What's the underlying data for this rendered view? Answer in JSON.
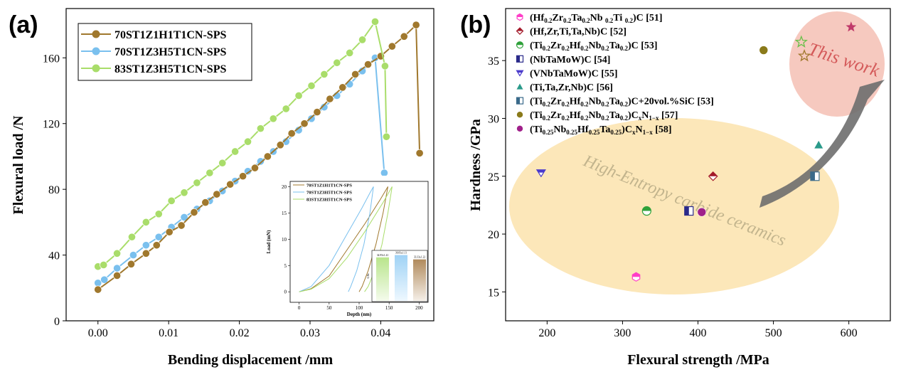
{
  "chart_data": [
    {
      "type": "line",
      "panel_label": "(a)",
      "xlabel": "Bending displacement /mm",
      "ylabel": "Flexural load /N",
      "xlim": [
        -0.0045,
        0.0475
      ],
      "ylim": [
        0,
        190
      ],
      "xticks": [
        0.0,
        0.01,
        0.02,
        0.03,
        0.04
      ],
      "xtick_labels": [
        "0.00",
        "0.01",
        "0.02",
        "0.03",
        "0.04"
      ],
      "yticks": [
        0,
        40,
        80,
        120,
        160
      ],
      "ytick_labels": [
        "0",
        "40",
        "80",
        "120",
        "160"
      ],
      "legend_position": "top-left",
      "series": [
        {
          "name": "70ST1Z1H1T1CN-SPS",
          "color": "#a0782d",
          "x": [
            0.0,
            0.0027,
            0.0047,
            0.0068,
            0.0083,
            0.0101,
            0.0118,
            0.0136,
            0.0152,
            0.0168,
            0.0187,
            0.0205,
            0.0222,
            0.024,
            0.0258,
            0.0274,
            0.0292,
            0.031,
            0.0328,
            0.0346,
            0.0364,
            0.0382,
            0.04,
            0.0416,
            0.0433,
            0.045,
            0.0455
          ],
          "y": [
            19.0,
            27.5,
            34.5,
            41.0,
            46.0,
            54.0,
            58.0,
            66.0,
            72.0,
            77.0,
            83.0,
            88.0,
            93.0,
            100.0,
            107.0,
            114.0,
            120.0,
            127.0,
            135.0,
            142.0,
            150.0,
            156.0,
            161.0,
            167.0,
            173.0,
            180.0,
            102.0
          ]
        },
        {
          "name": "70ST1Z3H5T1CN-SPS",
          "color": "#7ac0ee",
          "x": [
            0.0,
            0.0009,
            0.0027,
            0.005,
            0.0068,
            0.0086,
            0.0104,
            0.0122,
            0.014,
            0.0158,
            0.0176,
            0.0194,
            0.0212,
            0.023,
            0.0248,
            0.0266,
            0.0284,
            0.0302,
            0.032,
            0.0338,
            0.0356,
            0.0374,
            0.0392,
            0.0405
          ],
          "y": [
            23.0,
            25.0,
            32.0,
            40.0,
            46.0,
            51.0,
            57.0,
            63.0,
            68.0,
            73.0,
            79.0,
            85.0,
            91.0,
            97.0,
            103.0,
            109.0,
            116.0,
            123.0,
            130.0,
            137.0,
            144.0,
            152.0,
            160.0,
            90.0
          ]
        },
        {
          "name": "83ST1Z3H5T1CN-SPS",
          "color": "#a9dd6a",
          "x": [
            0.0,
            0.0008,
            0.0027,
            0.0048,
            0.0068,
            0.0086,
            0.0104,
            0.0122,
            0.014,
            0.0158,
            0.0176,
            0.0194,
            0.0212,
            0.023,
            0.0248,
            0.0266,
            0.0284,
            0.0302,
            0.032,
            0.0338,
            0.0356,
            0.0374,
            0.0392,
            0.0406,
            0.0408
          ],
          "y": [
            33.0,
            34.0,
            41.0,
            51.0,
            60.0,
            65.0,
            73.0,
            78.0,
            84.0,
            90.0,
            96.0,
            103.0,
            109.0,
            117.0,
            123.0,
            129.0,
            137.0,
            143.0,
            150.0,
            157.0,
            163.0,
            171.0,
            182.0,
            155.0,
            112.0
          ]
        }
      ],
      "inset": {
        "type": "line",
        "xlabel": "Depth (nm)",
        "ylabel": "Load (mN)",
        "xlim": [
          -15,
          215
        ],
        "ylim": [
          -2,
          21
        ],
        "xticks": [
          0,
          50,
          100,
          150,
          200
        ],
        "xtick_labels": [
          "0",
          "50",
          "100",
          "150",
          "200"
        ],
        "yticks": [
          0,
          5,
          10,
          15,
          20
        ],
        "ytick_labels": [
          "0",
          "5",
          "10",
          "15",
          "20"
        ],
        "legend": [
          "70ST1Z1H1T1CN-SPS",
          "70ST1Z3H5T1CN-SPS",
          "83ST1Z3H5T1CN-SPS"
        ],
        "bar_axis_label": "GPa",
        "bars": [
          {
            "label": "34.95±1.41",
            "value": 34.95,
            "color": "#b9e58c"
          },
          {
            "label": "36.83±1.11",
            "value": 36.83,
            "color": "#9fd2f5"
          },
          {
            "label": "33.33±1.22",
            "value": 33.33,
            "color": "#b08a5c"
          }
        ],
        "curves": [
          {
            "name": "70ST1Z1H1T1CN-SPS",
            "color": "#a0782d",
            "loading": [
              [
                0,
                0
              ],
              [
                20,
                0.6
              ],
              [
                50,
                3
              ],
              [
                80,
                8
              ],
              [
                110,
                13
              ],
              [
                135,
                17.5
              ],
              [
                148,
                20
              ]
            ],
            "unloading": [
              [
                148,
                20
              ],
              [
                140,
                15
              ],
              [
                128,
                9
              ],
              [
                115,
                4
              ],
              [
                105,
                1
              ],
              [
                100,
                0
              ]
            ]
          },
          {
            "name": "70ST1Z3H5T1CN-SPS",
            "color": "#7ac0ee",
            "loading": [
              [
                0,
                0
              ],
              [
                20,
                1
              ],
              [
                50,
                5
              ],
              [
                80,
                11
              ],
              [
                105,
                16
              ],
              [
                118,
                18.8
              ],
              [
                124,
                20
              ]
            ],
            "unloading": [
              [
                124,
                20
              ],
              [
                118,
                15
              ],
              [
                108,
                9
              ],
              [
                96,
                4
              ],
              [
                86,
                1
              ],
              [
                82,
                0
              ]
            ]
          },
          {
            "name": "83ST1Z3H5T1CN-SPS",
            "color": "#a9dd6a",
            "loading": [
              [
                0,
                0
              ],
              [
                20,
                0.5
              ],
              [
                50,
                2.5
              ],
              [
                80,
                6.5
              ],
              [
                110,
                11.5
              ],
              [
                140,
                17
              ],
              [
                155,
                20
              ]
            ],
            "unloading": [
              [
                155,
                20
              ],
              [
                148,
                15
              ],
              [
                138,
                9
              ],
              [
                126,
                4
              ],
              [
                115,
                1
              ],
              [
                109,
                0
              ]
            ]
          }
        ]
      }
    },
    {
      "type": "scatter",
      "panel_label": "(b)",
      "xlabel": "Flexural strength /MPa",
      "ylabel": "Hardness /GPa",
      "xlim": [
        145,
        655
      ],
      "ylim": [
        12.5,
        39.5
      ],
      "xticks": [
        200,
        300,
        400,
        500,
        600
      ],
      "xtick_labels": [
        "200",
        "300",
        "400",
        "500",
        "600"
      ],
      "yticks": [
        15,
        20,
        25,
        30,
        35
      ],
      "ytick_labels": [
        "15",
        "20",
        "25",
        "30",
        "35"
      ],
      "annotations": {
        "highlight": "This work",
        "region": "High-Entropy carbide ceramics"
      },
      "legend_position": "top-left",
      "series": [
        {
          "key": "hf",
          "label_html": "(Hf<tspan baseline-shift='-3' font-size='9'>0.2</tspan>Zr<tspan baseline-shift='-3' font-size='9'>0.2</tspan>Ta<tspan baseline-shift='-3' font-size='9'>0.2</tspan>Nb <tspan baseline-shift='-3' font-size='9'>0.2</tspan>Ti <tspan baseline-shift='-3' font-size='9'>0.2</tspan>)C [51]",
          "label": "(Hf0.2Zr0.2Ta0.2Nb 0.2Ti 0.2)C [51]",
          "marker": "hexagon-half",
          "color": "#ff3ec8",
          "points": [
            [
              318,
              16.3
            ]
          ]
        },
        {
          "key": "hfzr",
          "label_html": "(Hf,Zr,Ti,Ta,Nb)C [52]",
          "label": "(Hf,Zr,Ti,Ta,Nb)C [52]",
          "marker": "diamond-half",
          "color": "#a31a2a",
          "points": [
            [
              420,
              25.0
            ]
          ]
        },
        {
          "key": "ti53",
          "label_html": "(Ti<tspan baseline-shift='-3' font-size='9'>0.2</tspan>Zr<tspan baseline-shift='-3' font-size='9'>0.2</tspan>Hf<tspan baseline-shift='-3' font-size='9'>0.2</tspan>Nb<tspan baseline-shift='-3' font-size='9'>0.2</tspan>Ta<tspan baseline-shift='-3' font-size='9'>0.2</tspan>)C [53]",
          "label": "(Ti0.2Zr0.2Hf0.2Nb0.2Ta0.2)C [53]",
          "marker": "circle-half",
          "color": "#2fa13a",
          "points": [
            [
              332,
              22.0
            ]
          ]
        },
        {
          "key": "nbta",
          "label_html": "(NbTaMoW)C [54]",
          "label": "(NbTaMoW)C [54]",
          "marker": "square-half",
          "color": "#2a2a8a",
          "points": [
            [
              388,
              22.0
            ]
          ]
        },
        {
          "key": "vnb",
          "label_html": "(VNbTaMoW)C [55]",
          "label": "(VNbTaMoW)C [55]",
          "marker": "triangle-down",
          "color": "#4a3acc",
          "points": [
            [
              192,
              25.3
            ]
          ]
        },
        {
          "key": "titazr",
          "label_html": "(Ti,Ta,Zr,Nb)C [56]",
          "label": "(Ti,Ta,Zr,Nb)C [56]",
          "marker": "triangle-up",
          "color": "#2a9a8a",
          "points": [
            [
              560,
              27.7
            ]
          ]
        },
        {
          "key": "sic",
          "label_html": "(Ti<tspan baseline-shift='-3' font-size='9'>0.2</tspan>Zr<tspan baseline-shift='-3' font-size='9'>0.2</tspan>Hf<tspan baseline-shift='-3' font-size='9'>0.2</tspan>Nb<tspan baseline-shift='-3' font-size='9'>0.2</tspan>Ta<tspan baseline-shift='-3' font-size='9'>0.2</tspan>)C+20vol.%SiC [53]",
          "label": "(Ti0.2Zr0.2Hf0.2Nb0.2Ta0.2)C+20vol.%SiC [53]",
          "marker": "square-half",
          "color": "#3a6a8a",
          "points": [
            [
              555,
              25.0
            ]
          ]
        },
        {
          "key": "cn57",
          "label_html": "(Ti<tspan baseline-shift='-3' font-size='9'>0.2</tspan>Zr<tspan baseline-shift='-3' font-size='9'>0.2</tspan>Hf<tspan baseline-shift='-3' font-size='9'>0.2</tspan>Nb<tspan baseline-shift='-3' font-size='9'>0.2</tspan>Ta<tspan baseline-shift='-3' font-size='9'>0.2</tspan>)C<tspan baseline-shift='-3' font-size='9'>x</tspan>N<tspan baseline-shift='-3' font-size='9'>1−x</tspan> [57]",
          "label": "(Ti0.2Zr0.2Hf0.2Nb0.2Ta0.2)CxN1−x [57]",
          "marker": "circle",
          "color": "#8a7a1a",
          "points": [
            [
              487,
              35.9
            ]
          ]
        },
        {
          "key": "cn58",
          "label_html": "(Ti<tspan baseline-shift='-3' font-size='9'>0.25</tspan>Nb<tspan baseline-shift='-3' font-size='9'>0.25</tspan>Hf<tspan baseline-shift='-3' font-size='9'>0.25</tspan>Ta<tspan baseline-shift='-3' font-size='9'>0.25</tspan>)C<tspan baseline-shift='-3' font-size='9'>x</tspan>N<tspan baseline-shift='-3' font-size='9'>1−x</tspan> [58]",
          "label": "(Ti0.25Nb0.25Hf0.25Ta0.25)CxN1−x [58]",
          "marker": "circle",
          "color": "#a0208a",
          "points": [
            [
              405,
              21.9
            ]
          ]
        },
        {
          "key": "this1",
          "label": "This work",
          "marker": "star",
          "color": "#c03a6a",
          "points": [
            [
              603,
              37.9
            ]
          ]
        },
        {
          "key": "this2",
          "label": "This work",
          "marker": "star-open",
          "color": "#6ac04a",
          "points": [
            [
              537,
              36.6
            ]
          ]
        },
        {
          "key": "this3",
          "label": "This work",
          "marker": "star-open",
          "color": "#a0782d",
          "points": [
            [
              541,
              35.4
            ]
          ]
        }
      ]
    }
  ]
}
